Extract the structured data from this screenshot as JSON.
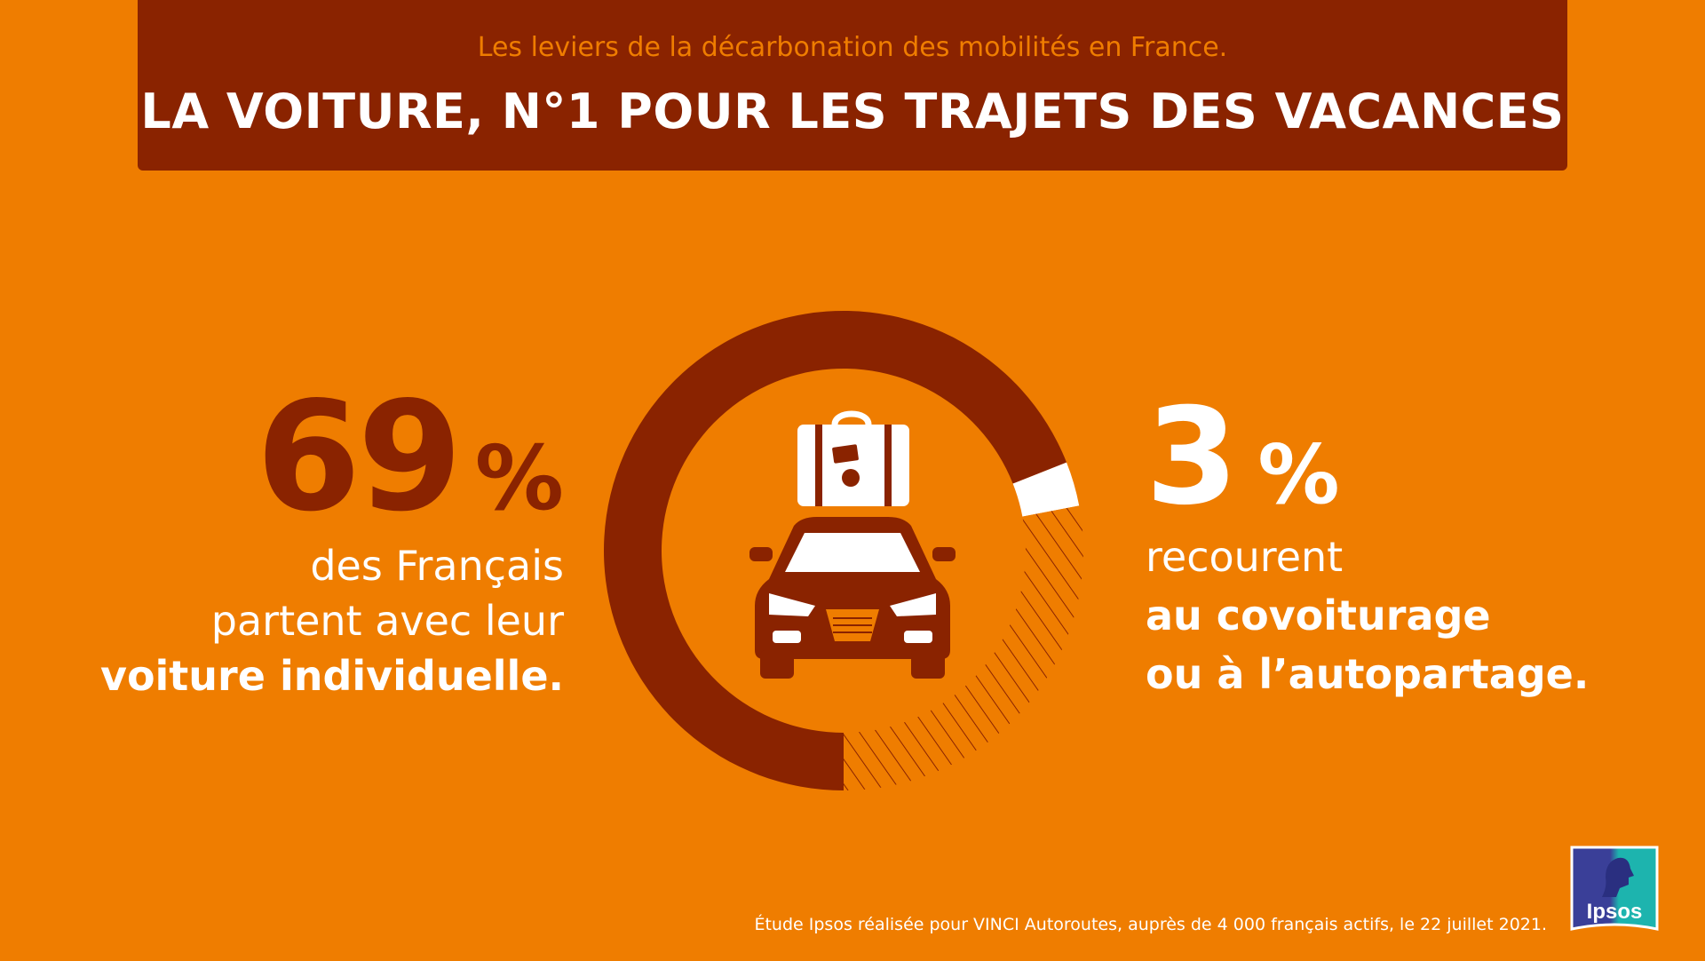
{
  "header": {
    "subtitle": "Les leviers de la décarbonation des mobilités en France.",
    "title": "LA VOITURE, N°1 POUR LES TRAJETS DES VACANCES"
  },
  "left_stat": {
    "value": "69",
    "unit": "%",
    "line1": "des Français",
    "line2": "partent avec leur",
    "line3": "voiture individuelle."
  },
  "right_stat": {
    "value": "3",
    "unit": "%",
    "line1": "recourent",
    "line2": "au covoiturage",
    "line3": "ou à l’autopartage."
  },
  "chart_data": {
    "type": "pie",
    "categories": [
      "voiture individuelle",
      "covoiturage ou autopartage",
      "autres"
    ],
    "values": [
      69,
      3,
      28
    ],
    "colors": [
      "#8A2300",
      "#FFFFFF",
      "hatched"
    ]
  },
  "icons": [
    "suitcase-icon",
    "car-icon"
  ],
  "footnote": "Étude Ipsos réalisée pour VINCI Autoroutes, auprès de 4 000 français actifs, le 22 juillet 2021.",
  "logo": {
    "text": "Ipsos"
  },
  "colors": {
    "background": "#EF7D00",
    "dark": "#8A2300",
    "light": "#FFFFFF",
    "logo_blue": "#3A3F98",
    "logo_teal": "#1DB4AE"
  }
}
